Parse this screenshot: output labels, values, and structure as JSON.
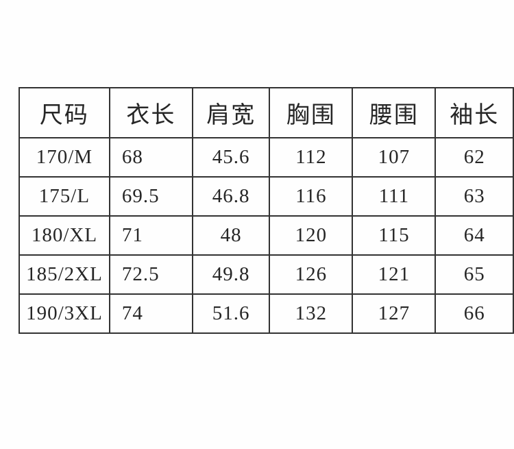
{
  "page": {
    "background_color": "#fefefe",
    "border_color": "#323232",
    "text_color": "#262626"
  },
  "chart_data": {
    "type": "table",
    "title": "",
    "columns": [
      "尺码",
      "衣长",
      "肩宽",
      "胸围",
      "腰围",
      "袖长"
    ],
    "rows": [
      [
        "170/M",
        "68",
        "45.6",
        "112",
        "107",
        "62"
      ],
      [
        "175/L",
        "69.5",
        "46.8",
        "116",
        "111",
        "63"
      ],
      [
        "180/XL",
        "71",
        "48",
        "120",
        "115",
        "64"
      ],
      [
        "185/2XL",
        "72.5",
        "49.8",
        "126",
        "121",
        "65"
      ],
      [
        "190/3XL",
        "74",
        "51.6",
        "132",
        "127",
        "66"
      ]
    ]
  }
}
